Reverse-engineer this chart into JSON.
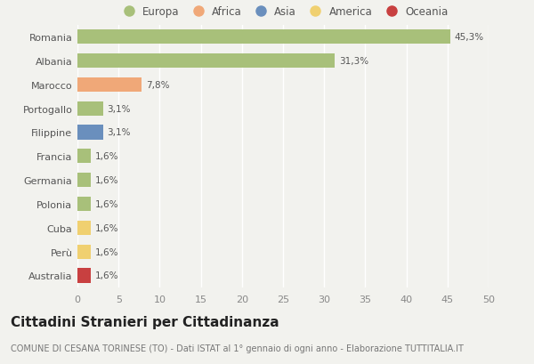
{
  "countries": [
    "Romania",
    "Albania",
    "Marocco",
    "Portogallo",
    "Filippine",
    "Francia",
    "Germania",
    "Polonia",
    "Cuba",
    "Perù",
    "Australia"
  ],
  "values": [
    45.3,
    31.3,
    7.8,
    3.1,
    3.1,
    1.6,
    1.6,
    1.6,
    1.6,
    1.6,
    1.6
  ],
  "labels": [
    "45,3%",
    "31,3%",
    "7,8%",
    "3,1%",
    "3,1%",
    "1,6%",
    "1,6%",
    "1,6%",
    "1,6%",
    "1,6%",
    "1,6%"
  ],
  "colors": [
    "#a8c07a",
    "#a8c07a",
    "#f0a878",
    "#a8c07a",
    "#6a8fbd",
    "#a8c07a",
    "#a8c07a",
    "#a8c07a",
    "#f0d070",
    "#f0d070",
    "#c84040"
  ],
  "legend_labels": [
    "Europa",
    "Africa",
    "Asia",
    "America",
    "Oceania"
  ],
  "legend_colors": [
    "#a8c07a",
    "#f0a878",
    "#6a8fbd",
    "#f0d070",
    "#c84040"
  ],
  "title": "Cittadini Stranieri per Cittadinanza",
  "subtitle": "COMUNE DI CESANA TORINESE (TO) - Dati ISTAT al 1° gennaio di ogni anno - Elaborazione TUTTITALIA.IT",
  "xlim": [
    0,
    50
  ],
  "xticks": [
    0,
    5,
    10,
    15,
    20,
    25,
    30,
    35,
    40,
    45,
    50
  ],
  "background_color": "#f2f2ee",
  "grid_color": "#ffffff",
  "bar_height": 0.6,
  "title_fontsize": 11,
  "subtitle_fontsize": 7,
  "label_fontsize": 7.5,
  "tick_fontsize": 8,
  "legend_fontsize": 8.5
}
